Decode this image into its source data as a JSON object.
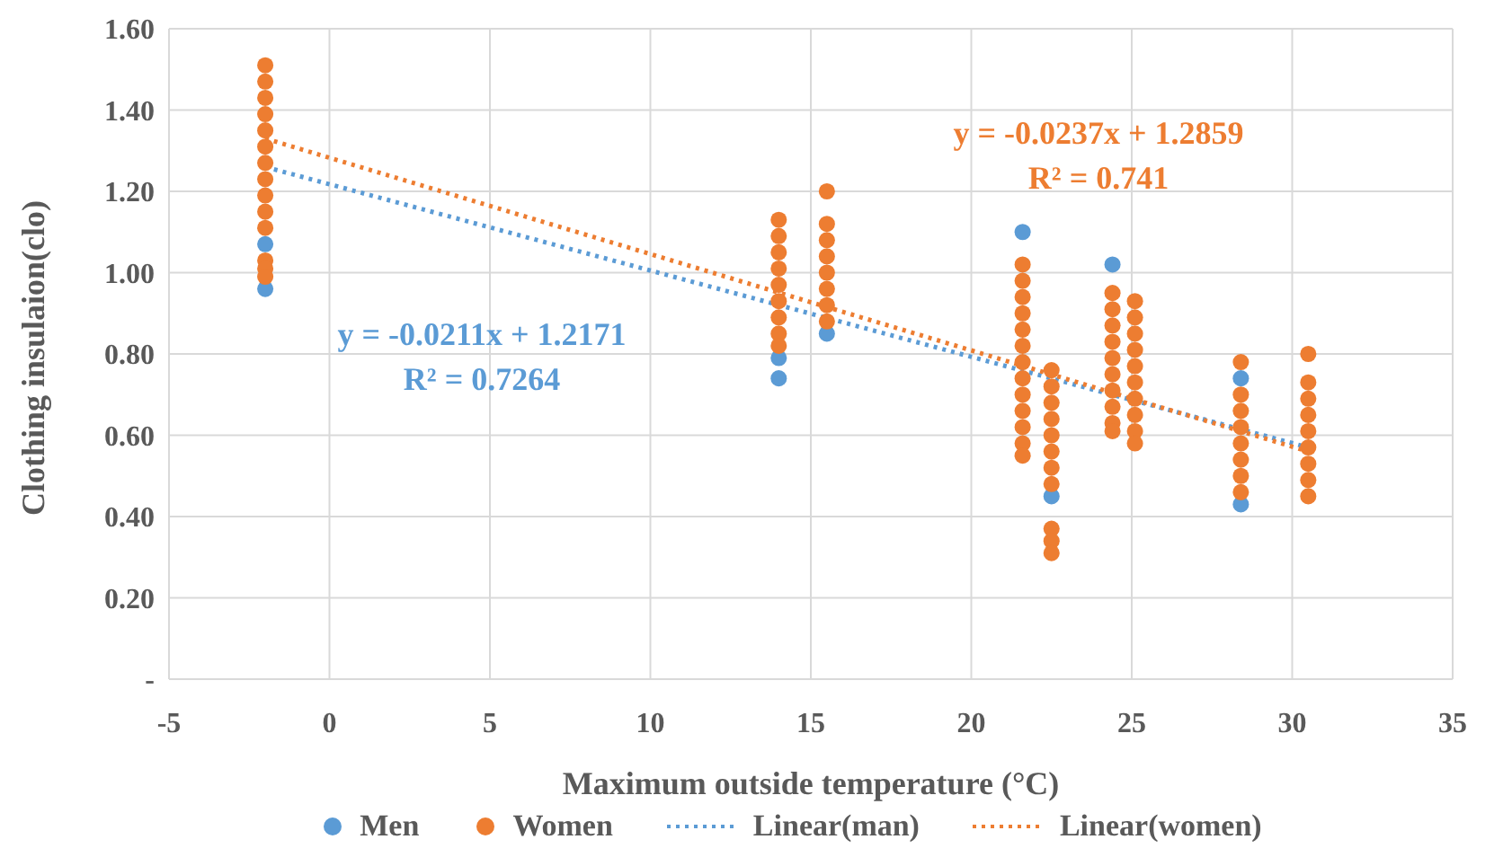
{
  "chart_data": {
    "type": "scatter",
    "xlabel": "Maximum outside temperature (°C)",
    "ylabel": "Clothing insulaion(clo)",
    "xlim": [
      -5,
      35
    ],
    "xticks": [
      -5,
      0,
      5,
      10,
      15,
      20,
      25,
      30,
      35
    ],
    "ylim": [
      0,
      1.6
    ],
    "yticks": [
      {
        "value": 0,
        "label": "-"
      },
      {
        "value": 0.2,
        "label": "0.20"
      },
      {
        "value": 0.4,
        "label": "0.40"
      },
      {
        "value": 0.6,
        "label": "0.60"
      },
      {
        "value": 0.8,
        "label": "0.80"
      },
      {
        "value": 1.0,
        "label": "1.00"
      },
      {
        "value": 1.2,
        "label": "1.20"
      },
      {
        "value": 1.4,
        "label": "1.40"
      },
      {
        "value": 1.6,
        "label": "1.60"
      }
    ],
    "grid": true,
    "legend": "bottom",
    "marker": "circle",
    "series": [
      {
        "name": "Men",
        "color": "#5b9bd5",
        "x": [
          -2,
          -2,
          14,
          14,
          15.5,
          21.6,
          22.5,
          24.4,
          28.4,
          28.4
        ],
        "values": [
          1.07,
          0.96,
          0.79,
          0.74,
          0.85,
          1.1,
          0.45,
          1.02,
          0.74,
          0.43
        ]
      },
      {
        "name": "Women",
        "color": "#ed7d31",
        "x": [
          -2,
          -2,
          -2,
          -2,
          -2,
          -2,
          -2,
          -2,
          -2,
          -2,
          -2,
          -2,
          -2,
          -2,
          14,
          14,
          14,
          14,
          14,
          14,
          14,
          14,
          14,
          15.5,
          15.5,
          15.5,
          15.5,
          15.5,
          15.5,
          15.5,
          15.5,
          21.6,
          21.6,
          21.6,
          21.6,
          21.6,
          21.6,
          21.6,
          21.6,
          21.6,
          21.6,
          21.6,
          21.6,
          21.6,
          22.5,
          22.5,
          22.5,
          22.5,
          22.5,
          22.5,
          22.5,
          22.5,
          22.5,
          22.5,
          22.5,
          24.4,
          24.4,
          24.4,
          24.4,
          24.4,
          24.4,
          24.4,
          24.4,
          24.4,
          24.4,
          25.1,
          25.1,
          25.1,
          25.1,
          25.1,
          25.1,
          25.1,
          25.1,
          25.1,
          25.1,
          28.4,
          28.4,
          28.4,
          28.4,
          28.4,
          28.4,
          28.4,
          28.4,
          30.5,
          30.5,
          30.5,
          30.5,
          30.5,
          30.5,
          30.5,
          30.5,
          30.5
        ],
        "values": [
          1.51,
          1.47,
          1.43,
          1.39,
          1.35,
          1.31,
          1.27,
          1.23,
          1.19,
          1.15,
          1.11,
          1.03,
          1.01,
          0.99,
          1.13,
          1.09,
          1.05,
          1.01,
          0.97,
          0.93,
          0.89,
          0.85,
          0.82,
          1.2,
          1.12,
          1.08,
          1.04,
          1.0,
          0.96,
          0.92,
          0.88,
          1.02,
          0.98,
          0.94,
          0.9,
          0.86,
          0.82,
          0.78,
          0.74,
          0.7,
          0.66,
          0.62,
          0.58,
          0.55,
          0.76,
          0.72,
          0.68,
          0.64,
          0.6,
          0.56,
          0.52,
          0.48,
          0.37,
          0.34,
          0.31,
          0.95,
          0.91,
          0.87,
          0.83,
          0.79,
          0.75,
          0.71,
          0.67,
          0.63,
          0.61,
          0.93,
          0.89,
          0.85,
          0.81,
          0.77,
          0.73,
          0.69,
          0.65,
          0.61,
          0.58,
          0.78,
          0.7,
          0.66,
          0.62,
          0.58,
          0.54,
          0.5,
          0.46,
          0.8,
          0.73,
          0.69,
          0.65,
          0.61,
          0.57,
          0.53,
          0.49,
          0.45
        ]
      },
      {
        "name": "Linear(man)",
        "type": "line",
        "color": "#5b9bd5",
        "line_style": "dotted",
        "marker": "none",
        "x": [
          -2,
          30.5
        ],
        "values": [
          1.26,
          0.57
        ]
      },
      {
        "name": "Linear(women)",
        "type": "line",
        "color": "#ed7d31",
        "line_style": "dotted",
        "marker": "none",
        "x": [
          -2,
          30.5
        ],
        "values": [
          1.33,
          0.56
        ]
      }
    ],
    "annotations": [
      "y = -0.0211x + 1.2171",
      "R² = 0.7264",
      "y = -0.0237x + 1.2859",
      "R² = 0.741"
    ]
  }
}
